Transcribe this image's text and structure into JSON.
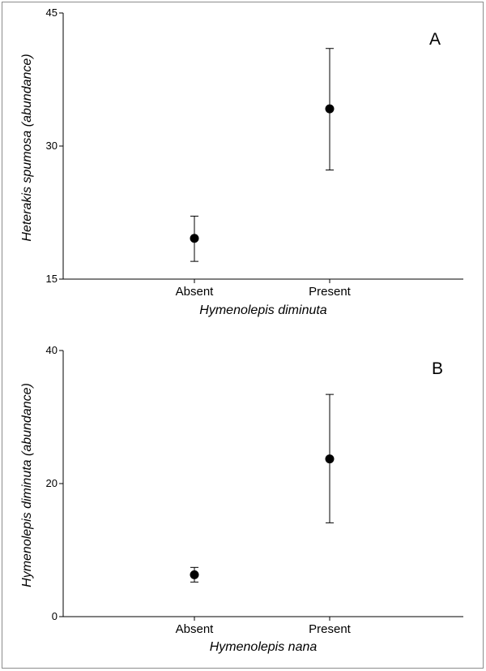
{
  "chart_data": [
    {
      "type": "scatter",
      "panel_label": "A",
      "categories": [
        "Absent",
        "Present"
      ],
      "xlabel": "Hymenolepis diminuta",
      "ylabel": "Heterakis spumosa (abundance)",
      "ylim": [
        15,
        45
      ],
      "yticks": [
        "15",
        "30",
        "45"
      ],
      "series": [
        {
          "values": [
            19.6,
            34.2
          ],
          "error_low": [
            17.0,
            27.3
          ],
          "error_high": [
            22.1,
            41.0
          ]
        }
      ],
      "grid": false,
      "legend": "none"
    },
    {
      "type": "scatter",
      "panel_label": "B",
      "categories": [
        "Absent",
        "Present"
      ],
      "xlabel": "Hymenolepis nana",
      "ylabel": "Hymenolepis diminuta (abundance)",
      "ylim": [
        0,
        40
      ],
      "yticks": [
        "0",
        "20",
        "40"
      ],
      "series": [
        {
          "values": [
            6.3,
            23.7
          ],
          "error_low": [
            5.2,
            14.1
          ],
          "error_high": [
            7.4,
            33.4
          ]
        }
      ],
      "grid": false,
      "legend": "none"
    }
  ]
}
